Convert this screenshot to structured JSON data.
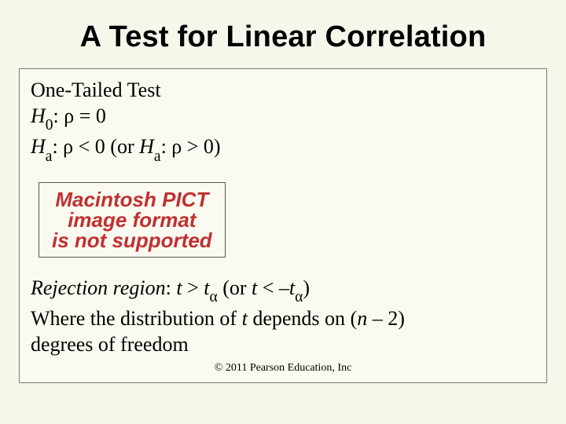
{
  "colors": {
    "slide_bg": "#f7f6eb",
    "box_border": "#7a7a7a",
    "box_bg": "#fbfaf1",
    "text": "#000000",
    "pict_text": "#c03030",
    "pict_border": "#555555"
  },
  "title": {
    "text": "A Test for Linear Correlation",
    "font_family": "Arial",
    "font_weight": 700,
    "font_size_pt": 28
  },
  "hypotheses": {
    "heading": "One-Tailed Test",
    "h0_label": "H",
    "h0_sub": "0",
    "h0_rest": ": ρ = 0",
    "ha_label": "H",
    "ha_sub": "a",
    "ha_rest_prefix": ": ρ < 0  (or ",
    "ha_inner_label": "H",
    "ha_inner_sub": "a",
    "ha_rest_suffix": ": ρ > 0)",
    "font_size_pt": 20
  },
  "pict": {
    "line1": "Macintosh PICT",
    "line2": "image format",
    "line3": "is not supported",
    "font_family": "Arial",
    "font_weight": 700,
    "font_style": "italic",
    "font_size_pt": 20
  },
  "rejection": {
    "label_italic": "Rejection region",
    "line1_prefix": ": ",
    "t": "t",
    "gt": " > ",
    "t_alpha": "t",
    "alpha": "α",
    "or_open": "  (or ",
    "lt": " < –",
    "close": ")",
    "line2_a": "Where the distribution of ",
    "line2_b": " depends on (",
    "n": "n",
    "line2_c": " – 2) ",
    "line3": "degrees of freedom",
    "font_size_pt": 20
  },
  "copyright": {
    "text": "© 2011 Pearson Education, Inc",
    "font_size_pt": 11
  }
}
